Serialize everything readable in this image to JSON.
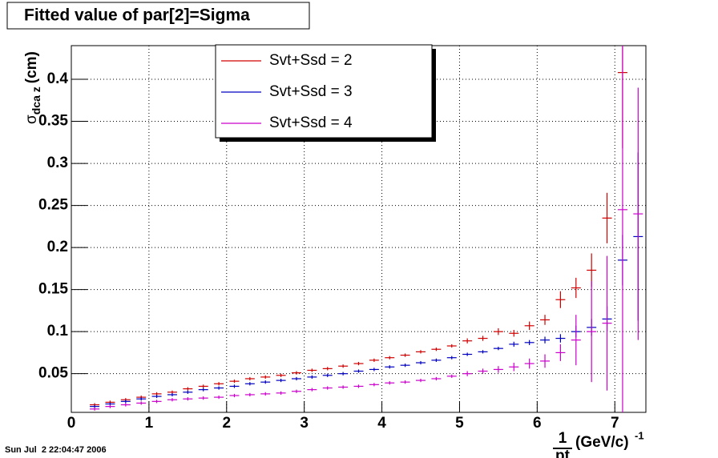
{
  "chart_data": {
    "type": "errorbar",
    "title": "Fitted value of par[2]=Sigma",
    "timestamp": "Sun Jul  2 22:04:47 2006",
    "y_label": {
      "symbol": "σ",
      "subscript": "dca z",
      "unit": "(cm)"
    },
    "x_label": {
      "numerator": "1",
      "denominator": "pt",
      "unit": "(GeV/c)",
      "exponent": "-1"
    },
    "x": [
      0.3,
      0.5,
      0.7,
      0.9,
      1.1,
      1.3,
      1.5,
      1.7,
      1.9,
      2.1,
      2.3,
      2.5,
      2.7,
      2.9,
      3.1,
      3.3,
      3.5,
      3.7,
      3.9,
      4.1,
      4.3,
      4.5,
      4.7,
      4.9,
      5.1,
      5.3,
      5.5,
      5.7,
      5.9,
      6.1,
      6.3,
      6.5,
      6.7,
      6.9,
      7.1,
      7.3
    ],
    "series": [
      {
        "name": "Svt+Ssd = 2",
        "color": "#d00000",
        "values": [
          0.013,
          0.016,
          0.019,
          0.022,
          0.026,
          0.028,
          0.032,
          0.035,
          0.038,
          0.041,
          0.044,
          0.046,
          0.048,
          0.051,
          0.054,
          0.056,
          0.059,
          0.062,
          0.066,
          0.069,
          0.072,
          0.076,
          0.079,
          0.083,
          0.089,
          0.092,
          0.1,
          0.098,
          0.107,
          0.114,
          0.138,
          0.152,
          0.173,
          0.235,
          0.408,
          null
        ],
        "errors": [
          0.002,
          0.002,
          0.002,
          0.002,
          0.002,
          0.002,
          0.002,
          0.002,
          0.002,
          0.002,
          0.002,
          0.002,
          0.002,
          0.002,
          0.002,
          0.002,
          0.002,
          0.002,
          0.002,
          0.002,
          0.002,
          0.002,
          0.002,
          0.002,
          0.003,
          0.003,
          0.004,
          0.004,
          0.005,
          0.006,
          0.01,
          0.012,
          0.02,
          0.03,
          0.09,
          null
        ]
      },
      {
        "name": "Svt+Ssd = 3",
        "color": "#0000c0",
        "values": [
          0.011,
          0.014,
          0.017,
          0.02,
          0.023,
          0.025,
          0.028,
          0.031,
          0.033,
          0.035,
          0.038,
          0.04,
          0.042,
          0.044,
          0.046,
          0.048,
          0.05,
          0.053,
          0.055,
          0.058,
          0.06,
          0.063,
          0.066,
          0.069,
          0.073,
          0.076,
          0.08,
          0.085,
          0.087,
          0.09,
          0.092,
          0.1,
          0.105,
          0.115,
          0.185,
          0.213
        ],
        "errors": [
          0.002,
          0.002,
          0.002,
          0.002,
          0.002,
          0.002,
          0.002,
          0.002,
          0.002,
          0.002,
          0.002,
          0.002,
          0.002,
          0.002,
          0.002,
          0.002,
          0.002,
          0.002,
          0.002,
          0.002,
          0.002,
          0.002,
          0.002,
          0.002,
          0.002,
          0.002,
          0.002,
          0.003,
          0.003,
          0.004,
          0.005,
          0.007,
          0.01,
          0.015,
          0.03,
          0.1
        ]
      },
      {
        "name": "Svt+Ssd = 4",
        "color": "#cc00cc",
        "values": [
          0.008,
          0.011,
          0.013,
          0.015,
          0.017,
          0.019,
          0.02,
          0.021,
          0.022,
          0.024,
          0.025,
          0.026,
          0.027,
          0.029,
          0.031,
          0.033,
          0.034,
          0.035,
          0.037,
          0.039,
          0.04,
          0.042,
          0.044,
          0.047,
          0.05,
          0.053,
          0.055,
          0.058,
          0.062,
          0.065,
          0.075,
          0.09,
          0.1,
          0.11,
          0.245,
          0.24
        ],
        "errors": [
          0.002,
          0.002,
          0.002,
          0.002,
          0.002,
          0.002,
          0.002,
          0.002,
          0.002,
          0.002,
          0.002,
          0.002,
          0.002,
          0.002,
          0.002,
          0.002,
          0.002,
          0.002,
          0.002,
          0.002,
          0.002,
          0.002,
          0.002,
          0.002,
          0.003,
          0.003,
          0.004,
          0.005,
          0.006,
          0.008,
          0.01,
          0.03,
          0.06,
          0.08,
          0.25,
          0.15
        ]
      }
    ],
    "xlim": [
      0,
      7.4
    ],
    "ylim": [
      0.004,
      0.44
    ],
    "xticks": [
      0,
      1,
      2,
      3,
      4,
      5,
      6,
      7
    ],
    "yticks": [
      0.05,
      0.1,
      0.15,
      0.2,
      0.25,
      0.3,
      0.35,
      0.4
    ],
    "grid": true
  }
}
